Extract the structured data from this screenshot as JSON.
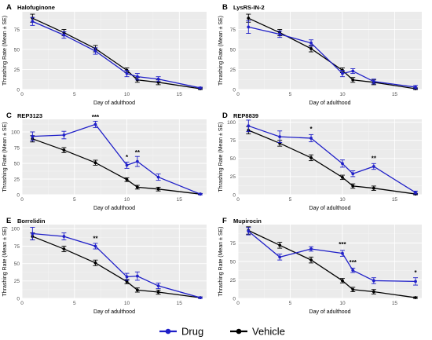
{
  "chart_data": [
    {
      "type": "line",
      "letter": "A",
      "title": "Halofuginone",
      "xlabel": "Day of adulthood",
      "ylabel": "Thrashing Rate (Mean ± SE)",
      "xlim": [
        0,
        17.6
      ],
      "ylim": [
        0,
        97
      ],
      "xticks": [
        0,
        5,
        10,
        15
      ],
      "yticks": [
        0,
        25,
        50,
        75
      ],
      "x": [
        1,
        4,
        7,
        10,
        11,
        13,
        17
      ],
      "series": [
        {
          "name": "Drug",
          "color": "#1f1fc8",
          "values": [
            85,
            68,
            48,
            20,
            16,
            13,
            2
          ],
          "errors": [
            5,
            4,
            4,
            4,
            4,
            3,
            1
          ]
        },
        {
          "name": "Vehicle",
          "color": "#000000",
          "values": [
            89,
            71,
            51,
            24,
            12,
            9,
            1
          ],
          "errors": [
            5,
            4,
            4,
            3,
            3,
            3,
            1
          ]
        }
      ],
      "annotations": []
    },
    {
      "type": "line",
      "letter": "B",
      "title": "LysRS-IN-2",
      "xlabel": "Day of adulthood",
      "ylabel": "Thrashing Rate (Mean ± SE)",
      "xlim": [
        0,
        17.6
      ],
      "ylim": [
        0,
        97
      ],
      "xticks": [
        0,
        5,
        10,
        15
      ],
      "yticks": [
        0,
        25,
        50,
        75
      ],
      "x": [
        1,
        4,
        7,
        10,
        11,
        13,
        17
      ],
      "series": [
        {
          "name": "Drug",
          "color": "#1f1fc8",
          "values": [
            78,
            69,
            58,
            20,
            23,
            10,
            3
          ],
          "errors": [
            8,
            4,
            4,
            4,
            3,
            3,
            2
          ]
        },
        {
          "name": "Vehicle",
          "color": "#000000",
          "values": [
            89,
            71,
            51,
            24,
            12,
            9,
            1
          ],
          "errors": [
            5,
            4,
            4,
            3,
            3,
            3,
            1
          ]
        }
      ],
      "annotations": []
    },
    {
      "type": "line",
      "letter": "C",
      "title": "REP3123",
      "xlabel": "Day of adulthood",
      "ylabel": "Thrashing Rate (Mean ± SE)",
      "xlim": [
        0,
        17.6
      ],
      "ylim": [
        0,
        120
      ],
      "xticks": [
        0,
        5,
        10,
        15
      ],
      "yticks": [
        0,
        25,
        50,
        75,
        100
      ],
      "x": [
        1,
        4,
        7,
        10,
        11,
        13,
        17
      ],
      "series": [
        {
          "name": "Drug",
          "color": "#1f1fc8",
          "values": [
            93,
            95,
            112,
            47,
            53,
            28,
            1
          ],
          "errors": [
            7,
            6,
            5,
            5,
            8,
            5,
            1
          ]
        },
        {
          "name": "Vehicle",
          "color": "#000000",
          "values": [
            89,
            71,
            51,
            24,
            12,
            9,
            1
          ],
          "errors": [
            5,
            4,
            4,
            3,
            3,
            3,
            1
          ]
        }
      ],
      "annotations": [
        {
          "x": 7,
          "text": "***",
          "y": 120
        },
        {
          "x": 10,
          "text": "*",
          "y": 56
        },
        {
          "x": 11,
          "text": "**",
          "y": 64
        }
      ]
    },
    {
      "type": "line",
      "letter": "D",
      "title": "REP8839",
      "xlabel": "Day of adulthood",
      "ylabel": "Thrashing Rate (Mean ± SE)",
      "xlim": [
        0,
        17.6
      ],
      "ylim": [
        0,
        104
      ],
      "xticks": [
        0,
        5,
        10,
        15
      ],
      "yticks": [
        0,
        25,
        50,
        75,
        100
      ],
      "x": [
        1,
        4,
        7,
        10,
        11,
        13,
        17
      ],
      "series": [
        {
          "name": "Drug",
          "color": "#1f1fc8",
          "values": [
            95,
            80,
            78,
            43,
            29,
            39,
            3
          ],
          "errors": [
            8,
            8,
            5,
            5,
            4,
            4,
            2
          ]
        },
        {
          "name": "Vehicle",
          "color": "#000000",
          "values": [
            89,
            71,
            51,
            24,
            12,
            9,
            1
          ],
          "errors": [
            5,
            4,
            4,
            3,
            3,
            3,
            1
          ]
        }
      ],
      "annotations": [
        {
          "x": 7,
          "text": "*",
          "y": 88
        },
        {
          "x": 13,
          "text": "**",
          "y": 47
        }
      ]
    },
    {
      "type": "line",
      "letter": "E",
      "title": "Borrelidin",
      "xlabel": "Day of adulthood",
      "ylabel": "Thrashing Rate (Mean ± SE)",
      "xlim": [
        0,
        17.6
      ],
      "ylim": [
        0,
        106
      ],
      "xticks": [
        0,
        5,
        10,
        15
      ],
      "yticks": [
        0,
        25,
        50,
        75,
        100
      ],
      "x": [
        1,
        4,
        7,
        10,
        11,
        13,
        17
      ],
      "series": [
        {
          "name": "Drug",
          "color": "#1f1fc8",
          "values": [
            93,
            89,
            75,
            31,
            32,
            18,
            1
          ],
          "errors": [
            9,
            5,
            4,
            5,
            6,
            4,
            1
          ]
        },
        {
          "name": "Vehicle",
          "color": "#000000",
          "values": [
            89,
            71,
            51,
            24,
            12,
            9,
            1
          ],
          "errors": [
            5,
            4,
            4,
            3,
            3,
            3,
            1
          ]
        }
      ],
      "annotations": [
        {
          "x": 7,
          "text": "**",
          "y": 83
        }
      ]
    },
    {
      "type": "line",
      "letter": "F",
      "title": "Mupirocin",
      "xlabel": "Day of adulthood",
      "ylabel": "Thrashing Rate (Mean ± SE)",
      "xlim": [
        0,
        17.6
      ],
      "ylim": [
        0,
        100
      ],
      "xticks": [
        0,
        5,
        10,
        15
      ],
      "yticks": [
        0,
        25,
        50,
        75
      ],
      "x": [
        1,
        4,
        7,
        10,
        11,
        13,
        17
      ],
      "series": [
        {
          "name": "Drug",
          "color": "#1f1fc8",
          "values": [
            91,
            56,
            67,
            61,
            38,
            24,
            23
          ],
          "errors": [
            5,
            4,
            3,
            4,
            3,
            4,
            5
          ]
        },
        {
          "name": "Vehicle",
          "color": "#000000",
          "values": [
            92,
            72,
            52,
            24,
            12,
            9,
            1
          ],
          "errors": [
            5,
            4,
            4,
            3,
            3,
            3,
            1
          ]
        }
      ],
      "annotations": [
        {
          "x": 10,
          "text": "***",
          "y": 70
        },
        {
          "x": 11,
          "text": "***",
          "y": 46
        },
        {
          "x": 17,
          "text": "*",
          "y": 32
        }
      ]
    }
  ],
  "legend": {
    "items": [
      {
        "label": "Drug",
        "color": "#1f1fc8"
      },
      {
        "label": "Vehicle",
        "color": "#000000"
      }
    ],
    "placement": "bottom-center"
  }
}
